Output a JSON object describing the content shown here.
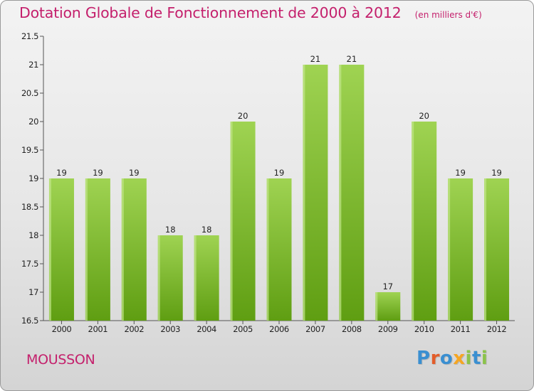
{
  "title": "Dotation Globale de Fonctionnement de 2000 à 2012",
  "unit_note": "(en milliers d'€)",
  "commune": "MOUSSON",
  "brand": {
    "letters": [
      "P",
      "r",
      "o",
      "x",
      "i",
      "t",
      "i"
    ],
    "colors": [
      "#3a8fd1",
      "#e35d2a",
      "#3a8fd1",
      "#f5a623",
      "#8bc34a",
      "#3a8fd1",
      "#8bc34a"
    ]
  },
  "chart_data": {
    "type": "bar",
    "categories": [
      "2000",
      "2001",
      "2002",
      "2003",
      "2004",
      "2005",
      "2006",
      "2007",
      "2008",
      "2009",
      "2010",
      "2011",
      "2012"
    ],
    "values": [
      19,
      19,
      19,
      18,
      18,
      20,
      19,
      21,
      21,
      17,
      20,
      19,
      19
    ],
    "data_labels": [
      "19",
      "19",
      "19",
      "18",
      "18",
      "20",
      "19",
      "21",
      "21",
      "17",
      "20",
      "19",
      "19"
    ],
    "ylim": [
      16.5,
      21.5
    ],
    "yticks": [
      "16.5",
      "17",
      "17.5",
      "18",
      "18.5",
      "19",
      "19.5",
      "20",
      "20.5",
      "21",
      "21.5"
    ],
    "grid": false,
    "colors": {
      "bar_top": "#9fd352",
      "bar_bottom": "#5f9e12",
      "bar_highlight": "#c2e58a",
      "axis": "#555555",
      "tick_text": "#222222"
    }
  }
}
